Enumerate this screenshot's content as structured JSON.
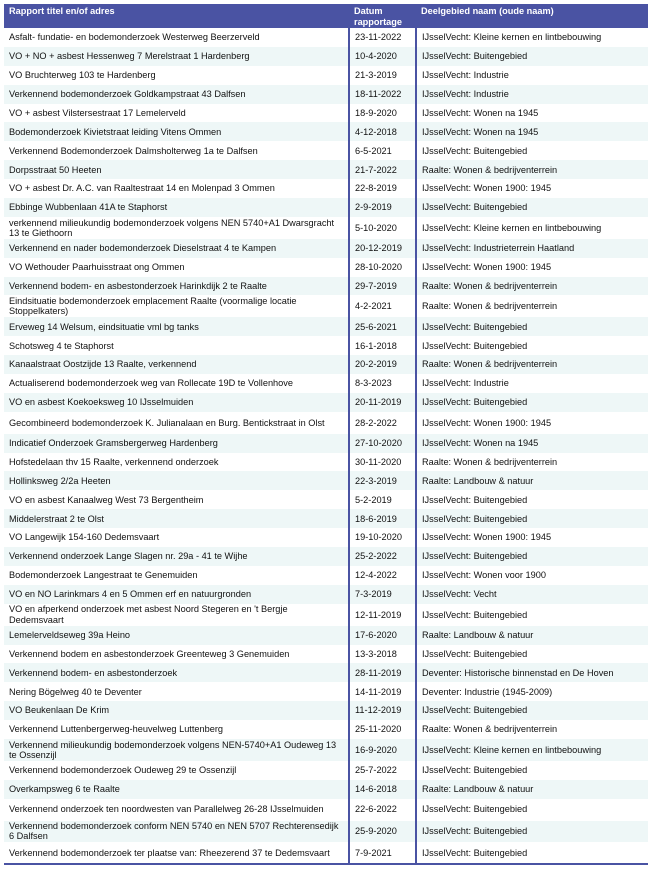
{
  "header": {
    "col_title": "Rapport titel en/of adres",
    "col_date_1": "Datum",
    "col_date_2": "rapportage",
    "col_area": "Deelgebied naam (oude naam)"
  },
  "colors": {
    "header_bg": "#4a53a3",
    "alt_row_bg": "#eef7f7"
  },
  "rows": [
    [
      "Asfalt- fundatie- en bodemonderzoek Westerweg Beerzerveld",
      "23-11-2022",
      "IJsselVecht: Kleine kernen en lintbebouwing"
    ],
    [
      "VO + NO + asbest Hessenweg 7 Merelstraat 1 Hardenberg",
      "10-4-2020",
      "IJsselVecht: Buitengebied"
    ],
    [
      "VO Bruchterweg 103 te Hardenberg",
      "21-3-2019",
      "IJsselVecht: Industrie"
    ],
    [
      "Verkennend bodemonderzoek Goldkampstraat 43 Dalfsen",
      "18-11-2022",
      "IJsselVecht: Industrie"
    ],
    [
      "VO + asbest Vilstersestraat 17 Lemelerveld",
      "18-9-2020",
      "IJsselVecht: Wonen na 1945"
    ],
    [
      "Bodemonderzoek Kivietstraat leiding Vitens Ommen",
      "4-12-2018",
      "IJsselVecht: Wonen na 1945"
    ],
    [
      "Verkennend Bodemonderzoek Dalmsholterweg 1a te Dalfsen",
      "6-5-2021",
      "IJsselVecht: Buitengebied"
    ],
    [
      "Dorpsstraat 50 Heeten",
      "21-7-2022",
      "Raalte: Wonen & bedrijventerrein"
    ],
    [
      "VO + asbest Dr. A.C. van Raaltestraat 14 en Molenpad 3 Ommen",
      "22-8-2019",
      "IJsselVecht: Wonen 1900: 1945"
    ],
    [
      "Ebbinge Wubbenlaan 41A te Staphorst",
      "2-9-2019",
      "IJsselVecht: Buitengebied"
    ],
    [
      "verkennend milieukundig bodemonderzoek volgens NEN 5740+A1 Dwarsgracht 13 te Giethoorn",
      "5-10-2020",
      "IJsselVecht: Kleine kernen en lintbebouwing"
    ],
    [
      "Verkennend en nader bodemonderzoek Dieselstraat 4 te Kampen",
      "20-12-2019",
      "IJsselVecht: Industrieterrein Haatland"
    ],
    [
      "VO Wethouder Paarhuisstraat ong Ommen",
      "28-10-2020",
      "IJsselVecht: Wonen 1900: 1945"
    ],
    [
      "Verkennend bodem- en asbestonderzoek Harinkdijk 2 te Raalte",
      "29-7-2019",
      "Raalte: Wonen & bedrijventerrein"
    ],
    [
      "Eindsituatie bodemonderzoek emplacement Raalte (voormalige locatie Stoppelkaters)",
      "4-2-2021",
      "Raalte: Wonen & bedrijventerrein"
    ],
    [
      "Erveweg 14 Welsum, eindsituatie vml bg tanks",
      "25-6-2021",
      "IJsselVecht: Buitengebied"
    ],
    [
      "Schotsweg 4 te Staphorst",
      "16-1-2018",
      "IJsselVecht: Buitengebied"
    ],
    [
      "Kanaalstraat Oostzijde 13 Raalte, verkennend",
      "20-2-2019",
      "Raalte: Wonen & bedrijventerrein"
    ],
    [
      "Actualiserend bodemonderzoek weg van Rollecate 19D te Vollenhove",
      "8-3-2023",
      "IJsselVecht: Industrie"
    ],
    [
      "VO en asbest Koekoeksweg 10 IJsselmuiden",
      "20-11-2019",
      "IJsselVecht: Buitengebied"
    ],
    [
      "Gecombineerd bodemonderzoek K. Julianalaan en Burg. Bentickstraat in Olst",
      "28-2-2022",
      "IJsselVecht: Wonen 1900: 1945"
    ],
    [
      "Indicatief Onderzoek Gramsbergerweg Hardenberg",
      "27-10-2020",
      "IJsselVecht: Wonen na 1945"
    ],
    [
      "Hofstedelaan thv 15 Raalte, verkennend onderzoek",
      "30-11-2020",
      "Raalte: Wonen & bedrijventerrein"
    ],
    [
      "Hollinksweg 2/2a Heeten",
      "22-3-2019",
      "Raalte: Landbouw & natuur"
    ],
    [
      "VO en asbest Kanaalweg West 73 Bergentheim",
      "5-2-2019",
      "IJsselVecht: Buitengebied"
    ],
    [
      "Middelerstraat 2 te Olst",
      "18-6-2019",
      "IJsselVecht: Buitengebied"
    ],
    [
      "VO Langewijk 154-160 Dedemsvaart",
      "19-10-2020",
      "IJsselVecht: Wonen 1900: 1945"
    ],
    [
      "Verkennend onderzoek Lange Slagen nr. 29a - 41 te Wijhe",
      "25-2-2022",
      "IJsselVecht: Buitengebied"
    ],
    [
      "Bodemonderzoek Langestraat te Genemuiden",
      "12-4-2022",
      "IJsselVecht: Wonen voor 1900"
    ],
    [
      "VO en NO Larinkmars 4 en 5 Ommen erf en natuurgronden",
      "7-3-2019",
      "IJsselVecht: Vecht"
    ],
    [
      "VO en afperkend onderzoek met asbest Noord Stegeren en 't Bergje Dedemsvaart",
      "12-11-2019",
      "IJsselVecht: Buitengebied"
    ],
    [
      "Lemelerveldseweg 39a Heino",
      "17-6-2020",
      "Raalte: Landbouw & natuur"
    ],
    [
      "Verkennend bodem en asbestonderzoek Greenteweg  3 Genemuiden",
      "13-3-2018",
      "IJsselVecht: Buitengebied"
    ],
    [
      "Verkennend bodem- en asbestonderzoek",
      "28-11-2019",
      "Deventer: Historische binnenstad en De Hoven"
    ],
    [
      "Nering Bögelweg 40 te Deventer",
      "14-11-2019",
      "Deventer: Industrie (1945-2009)"
    ],
    [
      "VO Beukenlaan De Krim",
      "11-12-2019",
      "IJsselVecht: Buitengebied"
    ],
    [
      "Verkennend Luttenbergerweg-heuvelweg Luttenberg",
      "25-11-2020",
      "Raalte: Wonen & bedrijventerrein"
    ],
    [
      "Verkennend milieukundig bodemonderzoek volgens NEN-5740+A1 Oudeweg 13 te Ossenzijl",
      "16-9-2020",
      "IJsselVecht: Kleine kernen en lintbebouwing"
    ],
    [
      "Verkennend bodemonderzoek Oudeweg 29 te Ossenzijl",
      "25-7-2022",
      "IJsselVecht: Buitengebied"
    ],
    [
      "Overkampsweg 6 te Raalte",
      "14-6-2018",
      "Raalte: Landbouw & natuur"
    ],
    [
      "Verkennend onderzoek ten noordwesten van Parallelweg 26-28 IJsselmuiden",
      "22-6-2022",
      "IJsselVecht: Buitengebied"
    ],
    [
      "Verkennend bodemonderzoek conform NEN 5740 en NEN 5707 Rechterensedijk 6 Dalfsen",
      "25-9-2020",
      "IJsselVecht: Buitengebied"
    ],
    [
      "Verkennend bodemonderzoek ter plaatse van: Rheezerend 37 te Dedemsvaart",
      "7-9-2021",
      "IJsselVecht: Buitengebied"
    ]
  ]
}
